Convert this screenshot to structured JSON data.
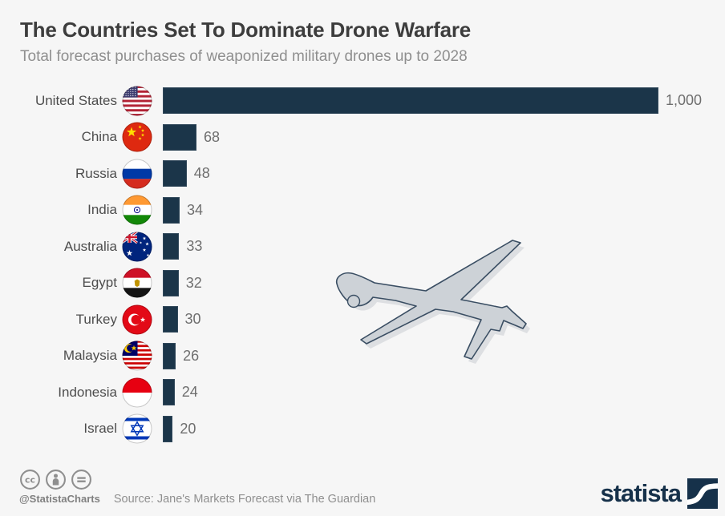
{
  "header": {
    "title": "The Countries Set To Dominate Drone Warfare",
    "subtitle": "Total forecast purchases of weaponized military drones up to 2028"
  },
  "chart_data": {
    "type": "bar",
    "orientation": "horizontal",
    "title": "The Countries Set To Dominate Drone Warfare",
    "xlabel": "",
    "ylabel": "",
    "xlim": [
      0,
      1000
    ],
    "grid": false,
    "legend": "none",
    "categories": [
      "United States",
      "China",
      "Russia",
      "India",
      "Australia",
      "Egypt",
      "Turkey",
      "Malaysia",
      "Indonesia",
      "Israel"
    ],
    "values": [
      1000,
      68,
      48,
      34,
      33,
      32,
      30,
      26,
      24,
      20
    ],
    "value_labels": [
      "1,000",
      "68",
      "48",
      "34",
      "33",
      "32",
      "30",
      "26",
      "24",
      "20"
    ],
    "flag_codes": [
      "us",
      "cn",
      "ru",
      "in",
      "au",
      "eg",
      "tr",
      "my",
      "id",
      "il"
    ],
    "bar_color": "#1b3549"
  },
  "illustration": {
    "name": "military-drone-silhouette"
  },
  "footer": {
    "license_icons": [
      "cc-icon",
      "attribution-icon",
      "no-derivatives-icon"
    ],
    "handle": "@StatistaCharts",
    "source": "Source: Jane's Markets Forecast via The Guardian",
    "brand": "statista"
  },
  "colors": {
    "background": "#f6f6f6",
    "bar": "#1b3549",
    "title": "#3d3d3d",
    "subtitle": "#8f8f8f",
    "brand_navy": "#16314a",
    "drone_fill": "#cdd2d7",
    "drone_outline": "#3a4e63"
  }
}
